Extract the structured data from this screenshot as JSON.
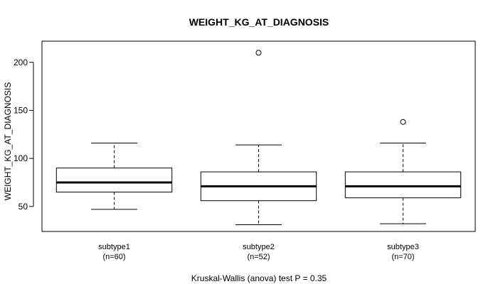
{
  "chart_data": {
    "type": "boxplot",
    "title": "WEIGHT_KG_AT_DIAGNOSIS",
    "xlabel": "",
    "ylabel": "WEIGHT_KG_AT_DIAGNOSIS",
    "ylim": [
      24,
      222
    ],
    "yticks": [
      50,
      100,
      150,
      200
    ],
    "grid": false,
    "footnote": "Kruskal-Wallis (anova) test P = 0.35",
    "colors": {
      "box": "#000000",
      "background": "#ffffff"
    },
    "categories": [
      {
        "name": "subtype1",
        "n_label": "(n=60)",
        "whisker_low": 47,
        "q1": 65,
        "median": 75,
        "q3": 90,
        "whisker_high": 116,
        "outliers": []
      },
      {
        "name": "subtype2",
        "n_label": "(n=52)",
        "whisker_low": 31,
        "q1": 56,
        "median": 71,
        "q3": 86,
        "whisker_high": 114,
        "outliers": [
          210
        ]
      },
      {
        "name": "subtype3",
        "n_label": "(n=70)",
        "whisker_low": 32,
        "q1": 59,
        "median": 71,
        "q3": 86,
        "whisker_high": 116,
        "outliers": [
          138
        ]
      }
    ]
  }
}
